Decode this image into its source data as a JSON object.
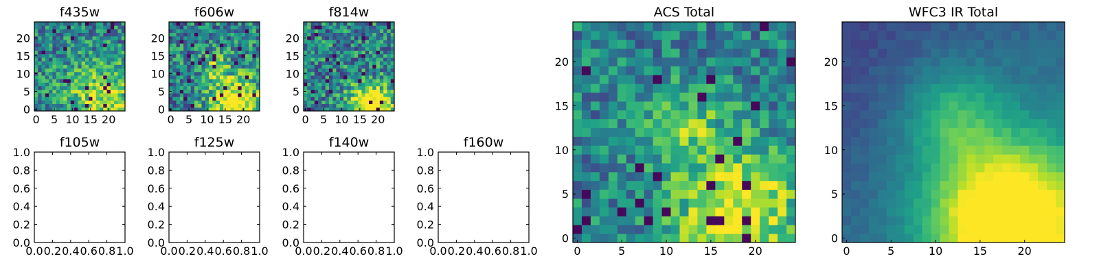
{
  "chart_data": [
    {
      "type": "heatmap",
      "title": "f435w",
      "grid": [
        25,
        25
      ],
      "seed": 11,
      "noise": 0.55,
      "vmin": 0,
      "vmax": 1,
      "peak": {
        "x": 18,
        "y": 3,
        "sigma": 7,
        "amp": 0.45
      },
      "xticks": [
        0,
        5,
        10,
        15,
        20
      ],
      "yticks": [
        0,
        5,
        10,
        15,
        20
      ]
    },
    {
      "type": "heatmap",
      "title": "f606w",
      "grid": [
        25,
        25
      ],
      "seed": 23,
      "noise": 0.62,
      "vmin": 0,
      "vmax": 1,
      "peak": {
        "x": 18,
        "y": 2,
        "sigma": 5,
        "amp": 0.7
      },
      "peak2": {
        "x": 12,
        "y": 12,
        "sigma": 3,
        "amp": 0.25
      },
      "xticks": [
        0,
        5,
        10,
        15,
        20
      ],
      "yticks": [
        0,
        5,
        10,
        15,
        20
      ]
    },
    {
      "type": "heatmap",
      "title": "f814w",
      "grid": [
        25,
        25
      ],
      "seed": 37,
      "noise": 0.6,
      "vmin": 0,
      "vmax": 1,
      "peak": {
        "x": 18,
        "y": 1,
        "sigma": 4,
        "amp": 0.85
      },
      "xticks": [
        0,
        5,
        10,
        15,
        20
      ],
      "yticks": [
        0,
        5,
        10,
        15,
        20
      ]
    },
    {
      "type": "empty",
      "title": "f105w",
      "xlim": [
        0,
        1
      ],
      "ylim": [
        0,
        1
      ],
      "xticks": [
        "0.0",
        "0.2",
        "0.4",
        "0.6",
        "0.8",
        "1.0"
      ],
      "yticks": [
        "0.0",
        "0.2",
        "0.4",
        "0.6",
        "0.8",
        "1.0"
      ]
    },
    {
      "type": "empty",
      "title": "f125w",
      "xlim": [
        0,
        1
      ],
      "ylim": [
        0,
        1
      ],
      "xticks": [
        "0.0",
        "0.2",
        "0.4",
        "0.6",
        "0.8",
        "1.0"
      ],
      "yticks": [
        "0.0",
        "0.2",
        "0.4",
        "0.6",
        "0.8",
        "1.0"
      ]
    },
    {
      "type": "empty",
      "title": "f140w",
      "xlim": [
        0,
        1
      ],
      "ylim": [
        0,
        1
      ],
      "xticks": [
        "0.0",
        "0.2",
        "0.4",
        "0.6",
        "0.8",
        "1.0"
      ],
      "yticks": [
        "0.0",
        "0.2",
        "0.4",
        "0.6",
        "0.8",
        "1.0"
      ]
    },
    {
      "type": "empty",
      "title": "f160w",
      "xlim": [
        0,
        1
      ],
      "ylim": [
        0,
        1
      ],
      "xticks": [
        "0.0",
        "0.2",
        "0.4",
        "0.6",
        "0.8",
        "1.0"
      ],
      "yticks": [
        "0.0",
        "0.2",
        "0.4",
        "0.6",
        "0.8",
        "1.0"
      ]
    },
    {
      "type": "heatmap",
      "title": "ACS Total",
      "grid": [
        25,
        25
      ],
      "seed": 51,
      "noise": 0.45,
      "vmin": 0,
      "vmax": 1,
      "peak": {
        "x": 18,
        "y": 3,
        "sigma": 5,
        "amp": 0.55
      },
      "peak2": {
        "x": 12,
        "y": 13,
        "sigma": 3,
        "amp": 0.3
      },
      "xticks": [
        0,
        5,
        10,
        15,
        20
      ],
      "yticks": [
        0,
        5,
        10,
        15,
        20
      ]
    },
    {
      "type": "heatmap",
      "title": "WFC3 IR Total",
      "grid": [
        25,
        25
      ],
      "seed": 67,
      "noise": 0.08,
      "vmin": 0,
      "vmax": 1,
      "peak": {
        "x": 18,
        "y": 2,
        "sigma": 6,
        "amp": 0.85
      },
      "peak2": {
        "x": 12,
        "y": 14,
        "sigma": 4,
        "amp": 0.3
      },
      "gradient": {
        "dir": "top-left-dark",
        "amp": 0.25
      },
      "xticks": [
        0,
        5,
        10,
        15,
        20
      ],
      "yticks": [
        0,
        5,
        10,
        15,
        20
      ]
    }
  ],
  "colormap": [
    "#440154",
    "#482878",
    "#3e4989",
    "#31688e",
    "#26828e",
    "#1f9e89",
    "#35b779",
    "#6ece58",
    "#b5de2b",
    "#fde725"
  ]
}
